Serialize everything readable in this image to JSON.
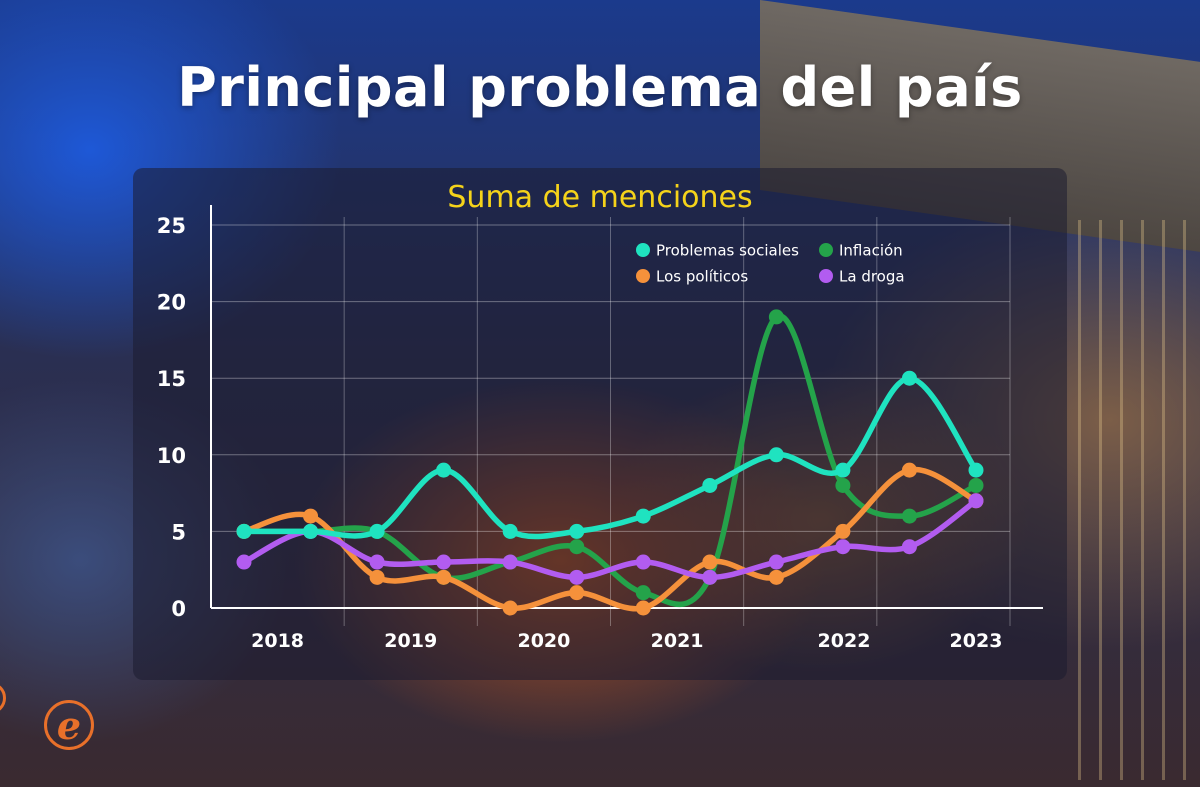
{
  "title": "Principal problema del país",
  "logo_glyph": "e",
  "chart_data": {
    "type": "line",
    "subtitle": "Suma de menciones",
    "xlabel": "",
    "ylabel": "",
    "ylim": [
      0,
      25
    ],
    "yticks": [
      0,
      5,
      10,
      15,
      20,
      25
    ],
    "grid": true,
    "legend_position": "top-right",
    "year_labels": [
      "2018",
      "2019",
      "2020",
      "2021",
      "2022",
      "2023"
    ],
    "x_points": 12,
    "series": [
      {
        "name": "Problemas sociales",
        "color": "#1fe3c0",
        "values": [
          5,
          5,
          5,
          9,
          5,
          5,
          6,
          8,
          10,
          9,
          15,
          9
        ]
      },
      {
        "name": "Inflación",
        "color": "#24a34a",
        "values": [
          5,
          5,
          5,
          2,
          3,
          4,
          1,
          2,
          19,
          8,
          6,
          8
        ]
      },
      {
        "name": "Los políticos",
        "color": "#f5913b",
        "values": [
          5,
          6,
          2,
          2,
          0,
          1,
          0,
          3,
          2,
          5,
          9,
          7
        ]
      },
      {
        "name": "La droga",
        "color": "#b25cf0",
        "values": [
          3,
          5,
          3,
          3,
          3,
          2,
          3,
          2,
          3,
          4,
          4,
          7
        ]
      }
    ]
  }
}
